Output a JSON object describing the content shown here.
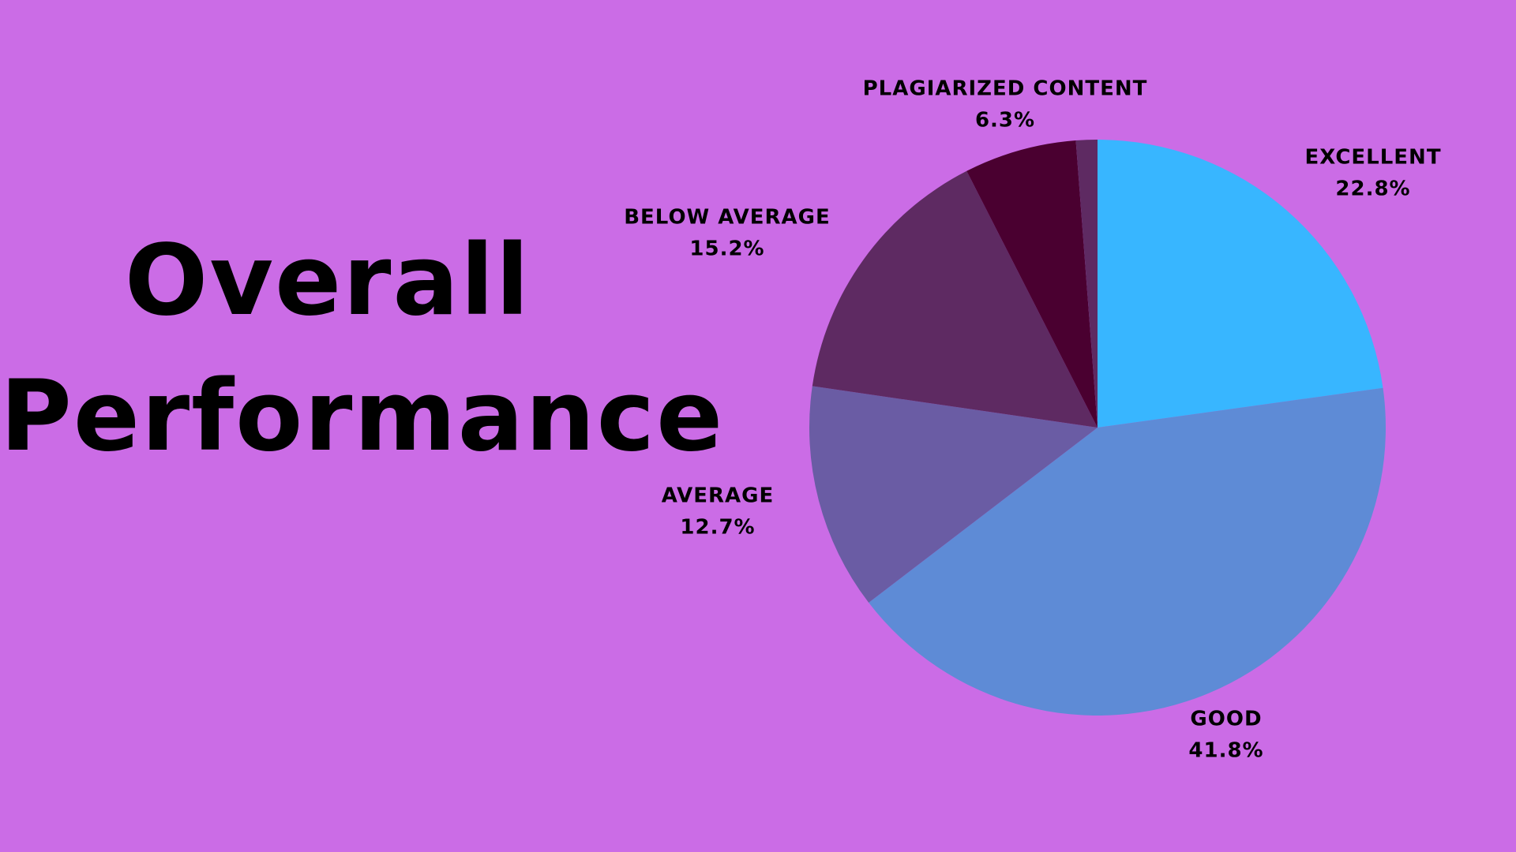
{
  "chart_data": {
    "type": "pie",
    "title": "Overall Performance",
    "categories": [
      "EXCELLENT",
      "GOOD",
      "AVERAGE",
      "BELOW AVERAGE",
      "PLAGIARIZED CONTENT",
      null
    ],
    "values": [
      22.8,
      41.8,
      12.7,
      15.2,
      6.3,
      1.2
    ],
    "value_labels": [
      "22.8%",
      "41.8%",
      "12.7%",
      "15.2%",
      "6.3%",
      null
    ],
    "colors": [
      "#38b6ff",
      "#5e8bd6",
      "#6a5ca4",
      "#5e2a62",
      "#4a0030",
      "#5e2a62"
    ]
  }
}
